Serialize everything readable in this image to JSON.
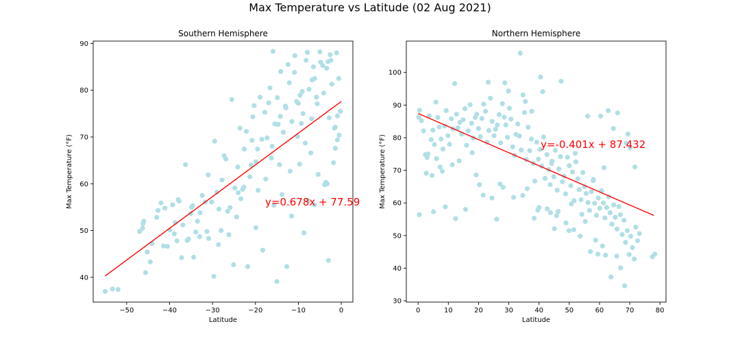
{
  "figure": {
    "suptitle": "Max Temperature vs Latitude (02 Aug 2021)"
  },
  "colors": {
    "point": "#b0dfe5",
    "regression": "#ff0000",
    "axis": "#000000",
    "background": "#ffffff"
  },
  "chart_data": [
    {
      "type": "scatter",
      "title": "Southern Hemisphere",
      "xlabel": "Latitude",
      "ylabel": "Max Temperature (°F)",
      "xlim": [
        -57.8,
        2.7
      ],
      "ylim": [
        34.7,
        90.5
      ],
      "xticks": [
        -50,
        -40,
        -30,
        -20,
        -10,
        0
      ],
      "xticklabels": [
        "−50",
        "−40",
        "−30",
        "−20",
        "−10",
        "0"
      ],
      "yticks": [
        40,
        50,
        60,
        70,
        80,
        90
      ],
      "yticklabels": [
        "40",
        "50",
        "60",
        "70",
        "80",
        "90"
      ],
      "grid": false,
      "series": [
        {
          "x": [
            -55.0,
            -53.3,
            -52.0,
            -47.0,
            -46.3,
            -45.6,
            -45.2,
            -44.5,
            -46.0,
            -46.2,
            -42.0,
            -43.0,
            -41.1,
            -39.9,
            -38.9,
            -38.3,
            -37.8,
            -36.9,
            -35.6,
            -34.6,
            -33.9,
            -32.9,
            -32.4,
            -31.0,
            -30.2,
            -29.0,
            -28.6,
            -27.8,
            -26.9,
            -25.9,
            -24.8,
            -24.1,
            -23.4,
            -22.6,
            -22.1,
            -21.3,
            -20.6,
            -19.9,
            -19.4,
            -18.5,
            -17.8,
            -16.9,
            -16.1,
            -15.5,
            -14.9,
            -14.2,
            -13.5,
            -12.9,
            -12.1,
            -11.5,
            -10.9,
            -10.2,
            -9.6,
            -8.9,
            -8.2,
            -7.5,
            -6.9,
            -6.2,
            -5.6,
            -4.8,
            -4.1,
            -3.4,
            -2.8,
            -2.2,
            -1.6,
            -1.1,
            -0.6,
            -0.2,
            -0.5,
            -1.8,
            -3.9,
            -5.4,
            -7.1,
            -8.4,
            -9.7,
            -11.6,
            -13.8,
            -15.7,
            -17.6,
            -19.9,
            -22.7,
            -24.4,
            -26.2,
            -28.5,
            -30.9,
            -33.5,
            -35.9,
            -38.7,
            -41.4,
            -44.1,
            -34.4,
            -29.7,
            -25.1,
            -21.8,
            -18.3,
            -15.0,
            -12.7,
            -8.7,
            -6.2,
            -3.0,
            -0.9,
            -2.6,
            -4.3,
            -6.8,
            -9.1,
            -10.8,
            -12.4,
            -14.1,
            -16.6,
            -18.9,
            -20.3,
            -23.6,
            -27.3,
            -31.7,
            -36.3,
            -39.3,
            -42.7,
            -40.5,
            -37.2,
            -33.0,
            -28.0,
            -23.0,
            -19.5,
            -14.7,
            -10.4,
            -7.9,
            -5.0,
            -2.4,
            -1.4,
            -3.6,
            -7.7,
            -11.9,
            -16.3,
            -20.8,
            -25.5,
            -29.5,
            -34.9,
            -15.9,
            -6.5,
            -14.4,
            -3.1,
            -0.9,
            -9.3,
            -13.0,
            -17.3,
            -21.0,
            -24.0,
            -26.5,
            -31.3,
            -35.1,
            -38.0,
            -10.0,
            -5.8,
            -3.3,
            -1.4
          ],
          "y": [
            37.0,
            37.5,
            37.4,
            49.8,
            50.5,
            41.0,
            45.4,
            43.3,
            52.0,
            51.5,
            55.9,
            52.8,
            54.8,
            50.1,
            49.3,
            47.8,
            56.3,
            51.2,
            48.2,
            55.3,
            49.7,
            53.8,
            57.5,
            61.9,
            56.1,
            58.2,
            47.0,
            60.8,
            65.3,
            54.9,
            59.1,
            63.6,
            56.8,
            67.4,
            71.2,
            61.5,
            74.3,
            64.7,
            58.6,
            69.5,
            75.3,
            77.3,
            68.0,
            72.8,
            78.4,
            74.4,
            71.0,
            76.2,
            81.6,
            73.3,
            83.8,
            70.1,
            78.9,
            75.0,
            86.4,
            80.2,
            73.9,
            82.5,
            77.1,
            86.0,
            79.4,
            84.7,
            74.1,
            81.3,
            71.9,
            88.0,
            82.5,
            75.5,
            70.4,
            64.5,
            59.8,
            62.0,
            66.6,
            68.7,
            64.2,
            53.1,
            57.7,
            55.4,
            61.0,
            50.6,
            59.3,
            52.9,
            49.1,
            54.6,
            48.3,
            52.0,
            47.9,
            51.7,
            46.7,
            47.2,
            44.3,
            40.2,
            42.7,
            42.3,
            45.8,
            39.1,
            42.3,
            49.5,
            55.5,
            43.6,
            74.5,
            87.6,
            85.3,
            82.2,
            79.7,
            87.4,
            85.5,
            84.0,
            80.5,
            78.5,
            76.7,
            71.9,
            66.0,
            56.1,
            64.1,
            55.5,
            54.3,
            46.6,
            44.2,
            48.7,
            50.0,
            58.8,
            67.4,
            72.7,
            77.6,
            88.1,
            88.2,
            86.4,
            67.6,
            60.3,
            56.4,
            62.7,
            65.5,
            69.3,
            78.0,
            69.1,
            55.0,
            88.3,
            85.0,
            64.1,
            86.1,
            69.4,
            72.9,
            76.6,
            69.8,
            64.0,
            58.1,
            54.1,
            49.8,
            53.6,
            56.6,
            77.2,
            78.5,
            60.0,
            72.1
          ]
        }
      ],
      "regression": {
        "slope": 0.678,
        "intercept": 77.59,
        "xrange": [
          -55.0,
          0.0
        ],
        "equation": "y=0.678x + 77.59"
      }
    },
    {
      "type": "scatter",
      "title": "Northern Hemisphere",
      "xlabel": "Latitude",
      "ylabel": "Max Temperature (°F)",
      "xlim": [
        -3.9,
        82.0
      ],
      "ylim": [
        29.6,
        109.6
      ],
      "xticks": [
        0,
        10,
        20,
        30,
        40,
        50,
        60,
        70,
        80
      ],
      "xticklabels": [
        "0",
        "10",
        "20",
        "30",
        "40",
        "50",
        "60",
        "70",
        "80"
      ],
      "yticks": [
        30,
        40,
        50,
        60,
        70,
        80,
        90,
        100
      ],
      "yticklabels": [
        "30",
        "40",
        "50",
        "60",
        "70",
        "80",
        "90",
        "100"
      ],
      "grid": false,
      "series": [
        {
          "x": [
            0.2,
            0.5,
            1.1,
            1.8,
            2.4,
            3.0,
            3.7,
            4.3,
            4.9,
            5.4,
            5.9,
            6.5,
            7.0,
            7.6,
            8.2,
            8.8,
            9.3,
            9.9,
            10.4,
            11.0,
            11.5,
            12.1,
            12.7,
            13.2,
            13.8,
            14.4,
            14.9,
            15.5,
            16.0,
            16.6,
            17.2,
            17.7,
            18.3,
            18.9,
            19.4,
            20.0,
            20.6,
            21.1,
            21.7,
            22.3,
            22.8,
            23.4,
            23.9,
            24.5,
            25.1,
            25.6,
            26.2,
            26.8,
            27.3,
            27.9,
            28.5,
            29.0,
            29.6,
            30.2,
            30.7,
            31.3,
            31.9,
            32.4,
            33.0,
            33.5,
            34.1,
            34.7,
            35.2,
            35.8,
            36.4,
            36.9,
            37.5,
            38.1,
            38.6,
            39.2,
            39.8,
            40.3,
            40.9,
            41.5,
            42.0,
            42.6,
            43.2,
            43.7,
            44.3,
            44.9,
            45.4,
            46.0,
            46.6,
            47.1,
            47.7,
            48.3,
            48.8,
            49.4,
            50.0,
            50.5,
            51.1,
            51.6,
            52.2,
            52.8,
            53.3,
            53.9,
            54.5,
            55.0,
            55.6,
            56.2,
            56.7,
            57.3,
            57.9,
            58.4,
            59.0,
            59.6,
            60.1,
            60.7,
            61.3,
            61.8,
            62.4,
            63.0,
            63.5,
            64.1,
            64.7,
            65.2,
            65.8,
            66.4,
            66.9,
            67.5,
            68.1,
            68.6,
            69.2,
            69.8,
            70.3,
            70.9,
            71.5,
            72.0,
            72.6,
            73.2,
            77.5,
            78.3,
            33.8,
            26.0,
            21.5,
            17.9,
            9.0,
            5.1,
            0.4,
            47.3,
            40.5,
            37.6,
            44.2,
            52.0,
            56.1,
            60.4,
            62.9,
            66.0,
            69.4,
            70.1,
            71.7,
            68.8,
            64.6,
            61.5,
            58.0,
            54.2,
            50.7,
            46.3,
            42.7,
            39.6,
            36.1,
            31.6,
            28.1,
            24.4,
            20.3,
            15.7,
            12.4,
            8.0,
            4.6,
            2.7,
            35.5,
            28.7,
            23.2,
            29.9,
            13.6,
            7.3,
            41.2,
            48.9,
            55.3,
            59.5,
            63.8,
            65.7,
            68.3,
            53.6,
            45.1,
            38.4,
            43.8,
            49.9,
            57.0,
            61.0,
            67.0,
            62.0,
            58.7,
            51.5,
            45.8,
            40.0,
            34.6,
            27.1,
            19.2,
            11.3,
            6.1,
            3.3
          ],
          "y": [
            86.3,
            88.4,
            85.2,
            82.1,
            74.8,
            73.9,
            86.7,
            79.4,
            82.3,
            77.9,
            90.9,
            86.2,
            83.3,
            79.6,
            76.5,
            83.6,
            88.3,
            80.6,
            78.0,
            85.8,
            82.7,
            96.6,
            87.2,
            83.0,
            84.7,
            81.1,
            85.5,
            88.9,
            77.7,
            82.1,
            90.1,
            84.4,
            79.9,
            86.2,
            87.2,
            82.8,
            80.3,
            85.9,
            90.3,
            88.1,
            78.6,
            82.2,
            92.1,
            85.0,
            80.6,
            82.6,
            83.9,
            87.1,
            78.4,
            90.4,
            86.3,
            83.9,
            80.1,
            89.0,
            85.7,
            77.2,
            74.6,
            81.0,
            84.2,
            80.5,
            76.2,
            93.1,
            87.7,
            73.3,
            83.2,
            76.0,
            79.6,
            72.1,
            66.7,
            78.6,
            73.4,
            76.4,
            71.3,
            80.2,
            67.5,
            74.8,
            70.2,
            65.6,
            72.8,
            68.0,
            76.1,
            63.9,
            70.4,
            74.2,
            66.5,
            68.2,
            62.8,
            74.0,
            71.4,
            65.3,
            69.5,
            60.7,
            72.6,
            67.4,
            64.1,
            61.0,
            69.3,
            65.0,
            62.9,
            60.1,
            57.7,
            63.5,
            66.8,
            59.9,
            56.2,
            61.5,
            58.4,
            63.7,
            60.0,
            55.4,
            58.6,
            61.9,
            57.0,
            53.5,
            59.4,
            55.6,
            52.0,
            58.9,
            56.4,
            50.3,
            54.7,
            47.9,
            51.5,
            44.2,
            49.8,
            46.3,
            42.8,
            52.6,
            48.4,
            50.6,
            43.5,
            44.3,
            105.9,
            55.0,
            62.4,
            75.4,
            58.8,
            57.3,
            56.4,
            97.3,
            98.6,
            88.1,
            72.1,
            75.2,
            86.6,
            86.6,
            88.3,
            87.6,
            81.1,
            76.9,
            71.0,
            78.3,
            82.8,
            70.8,
            67.2,
            56.5,
            59.7,
            57.4,
            58.2,
            57.8,
            64.4,
            61.7,
            64.8,
            61.5,
            65.6,
            58.0,
            55.2,
            69.7,
            68.4,
            69.1,
            91.1,
            96.8,
            97.0,
            94.3,
            72.9,
            71.0,
            94.1,
            53.9,
            54.3,
            44.3,
            37.3,
            43.7,
            34.6,
            49.8,
            52.1,
            55.3,
            57.0,
            51.5,
            45.1,
            46.8,
            40.1,
            44.0,
            48.6,
            51.8,
            56.1,
            58.6,
            62.3,
            65.8,
            68.6,
            71.7,
            73.6,
            75.0
          ]
        }
      ],
      "regression": {
        "slope": -0.401,
        "intercept": 87.432,
        "xrange": [
          0.0,
          78.0
        ],
        "equation": "y=-0.401x + 87.432"
      }
    }
  ]
}
